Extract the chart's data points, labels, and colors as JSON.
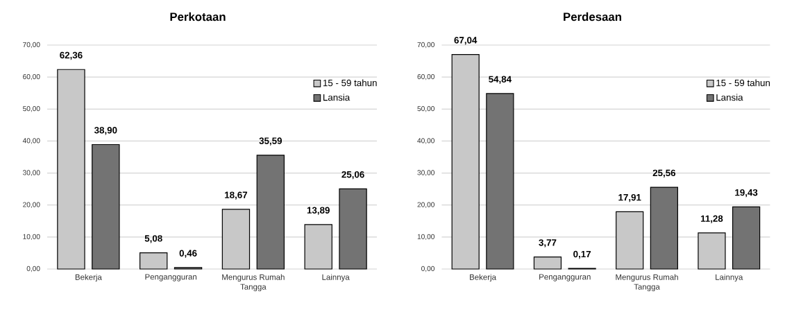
{
  "chart_data": [
    {
      "type": "bar",
      "title": "Perkotaan",
      "categories": [
        "Bekerja",
        "Pengangguran",
        "Mengurus Rumah Tangga",
        "Lainnya"
      ],
      "series": [
        {
          "name": "15 - 59 tahun",
          "color": "#c8c8c8",
          "values": [
            62.36,
            5.08,
            18.67,
            13.89
          ],
          "value_labels": [
            "62,36",
            "5,08",
            "18,67",
            "13,89"
          ]
        },
        {
          "name": "Lansia",
          "color": "#737373",
          "values": [
            38.9,
            0.46,
            35.59,
            25.06
          ],
          "value_labels": [
            "38,90",
            "0,46",
            "35,59",
            "25,06"
          ]
        }
      ],
      "ylim": [
        0,
        70
      ],
      "yticks": [
        {
          "value": 0,
          "label": "0,00"
        },
        {
          "value": 10,
          "label": "10,00"
        },
        {
          "value": 20,
          "label": "20,00"
        },
        {
          "value": 30,
          "label": "30,00"
        },
        {
          "value": 40,
          "label": "40,00"
        },
        {
          "value": 50,
          "label": "50,00"
        },
        {
          "value": 60,
          "label": "60,00"
        },
        {
          "value": 70,
          "label": "70,00"
        }
      ],
      "grid": "y",
      "legend": "top right"
    },
    {
      "type": "bar",
      "title": "Perdesaan",
      "categories": [
        "Bekerja",
        "Pengangguran",
        "Mengurus Rumah Tangga",
        "Lainnya"
      ],
      "series": [
        {
          "name": "15 - 59 tahun",
          "color": "#c8c8c8",
          "values": [
            67.04,
            3.77,
            17.91,
            11.28
          ],
          "value_labels": [
            "67,04",
            "3,77",
            "17,91",
            "11,28"
          ]
        },
        {
          "name": "Lansia",
          "color": "#737373",
          "values": [
            54.84,
            0.17,
            25.56,
            19.43
          ],
          "value_labels": [
            "54,84",
            "0,17",
            "25,56",
            "19,43"
          ]
        }
      ],
      "ylim": [
        0,
        70
      ],
      "yticks": [
        {
          "value": 0,
          "label": "0,00"
        },
        {
          "value": 10,
          "label": "10,00"
        },
        {
          "value": 20,
          "label": "20,00"
        },
        {
          "value": 30,
          "label": "30,00"
        },
        {
          "value": 40,
          "label": "40,00"
        },
        {
          "value": 50,
          "label": "50,00"
        },
        {
          "value": 60,
          "label": "60,00"
        },
        {
          "value": 70,
          "label": "70,00"
        }
      ],
      "grid": "y",
      "legend": "top right"
    }
  ]
}
